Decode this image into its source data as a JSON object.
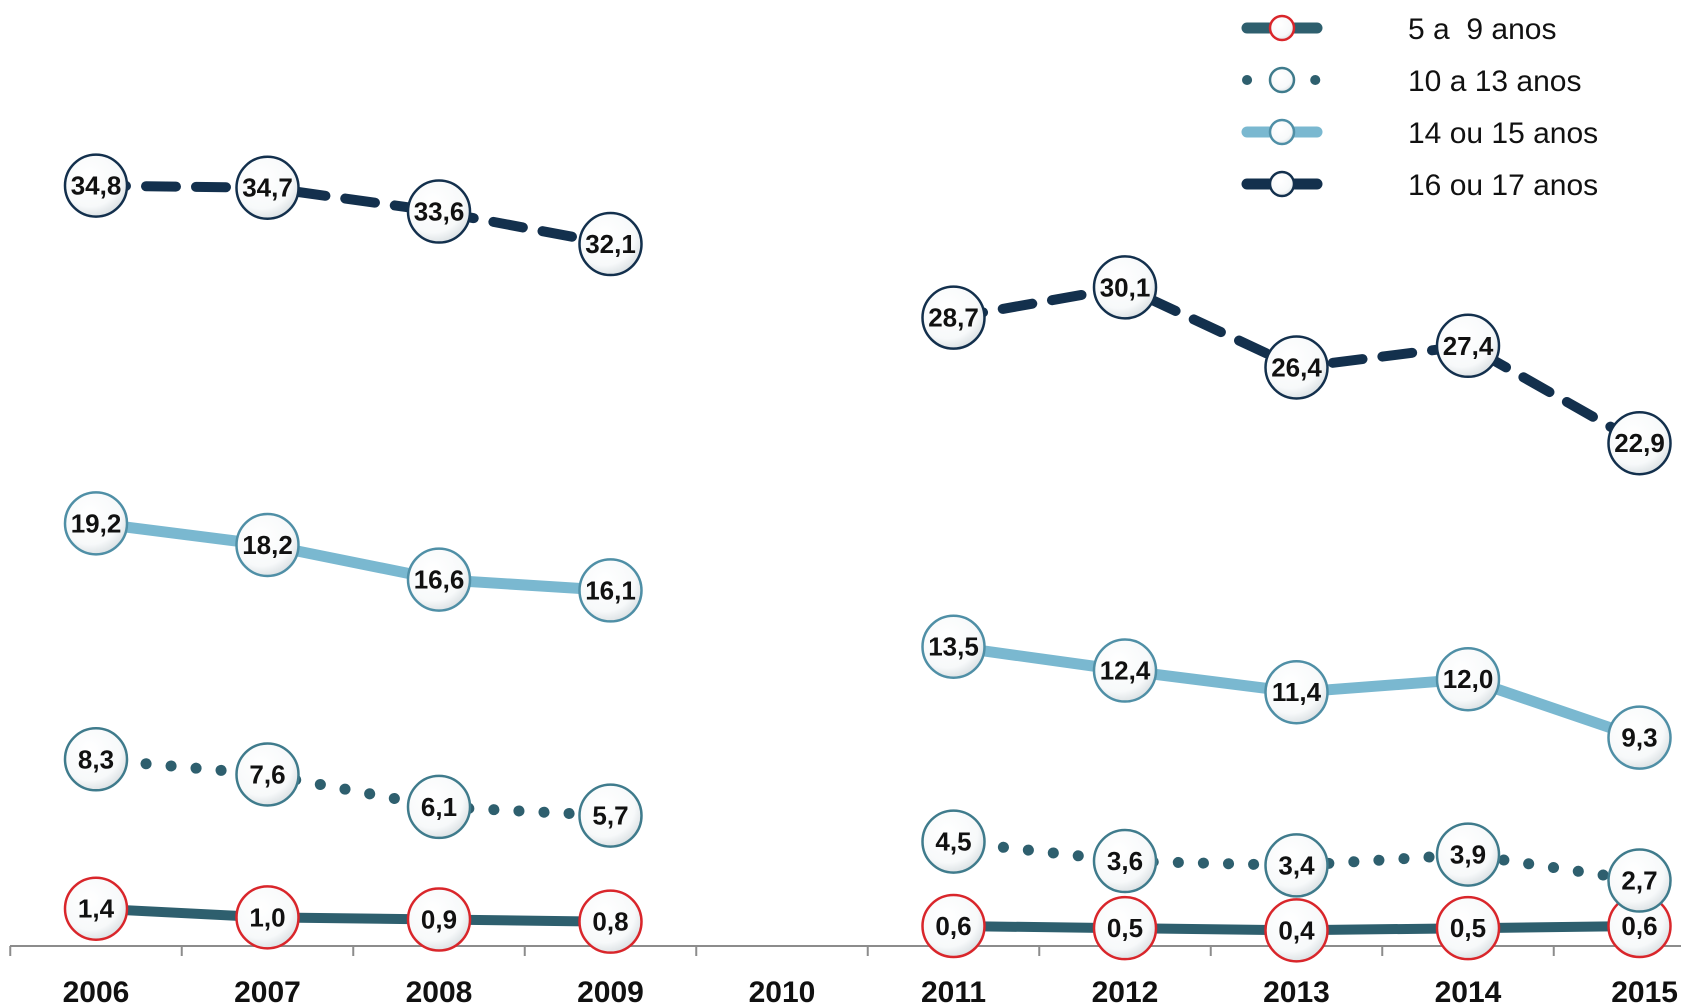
{
  "chart_data": {
    "type": "line",
    "title": "",
    "xlabel": "",
    "ylabel": "",
    "categories": [
      "2006",
      "2007",
      "2008",
      "2009",
      "2010",
      "2011",
      "2012",
      "2013",
      "2014",
      "2015"
    ],
    "ylim": [
      0,
      36
    ],
    "grid": false,
    "legend_position": "top-right",
    "series": [
      {
        "name": "5 a  9 anos",
        "values": [
          1.4,
          1.0,
          0.9,
          0.8,
          null,
          0.6,
          0.5,
          0.4,
          0.5,
          0.6
        ],
        "labels": [
          "1,4",
          "1,0",
          "0,9",
          "0,8",
          "",
          "0,6",
          "0,5",
          "0,4",
          "0,5",
          "0,6"
        ],
        "color": "#2e5f6e",
        "marker_edge": "#d9262b",
        "line_style": "solid"
      },
      {
        "name": "10 a 13 anos",
        "values": [
          8.3,
          7.6,
          6.1,
          5.7,
          null,
          4.5,
          3.6,
          3.4,
          3.9,
          2.7
        ],
        "labels": [
          "8,3",
          "7,6",
          "6,1",
          "5,7",
          "",
          "4,5",
          "3,6",
          "3,4",
          "3,9",
          "2,7"
        ],
        "color": "#2e5f6e",
        "marker_edge": "#3f7b8c",
        "line_style": "dotted"
      },
      {
        "name": "14 ou 15 anos",
        "values": [
          19.2,
          18.2,
          16.6,
          16.1,
          null,
          13.5,
          12.4,
          11.4,
          12.0,
          9.3
        ],
        "labels": [
          "19,2",
          "18,2",
          "16,6",
          "16,1",
          "",
          "13,5",
          "12,4",
          "11,4",
          "12,0",
          "9,3"
        ],
        "color": "#7ab8d0",
        "marker_edge": "#4f8fa6",
        "line_style": "solid"
      },
      {
        "name": "16 ou 17 anos",
        "values": [
          34.8,
          34.7,
          33.6,
          32.1,
          null,
          28.7,
          30.1,
          26.4,
          27.4,
          22.9
        ],
        "labels": [
          "34,8",
          "34,7",
          "33,6",
          "32,1",
          "",
          "28,7",
          "30,1",
          "26,4",
          "27,4",
          "22,9"
        ],
        "color": "#13304d",
        "marker_edge": "#13304d",
        "line_style": "dashed"
      }
    ]
  }
}
